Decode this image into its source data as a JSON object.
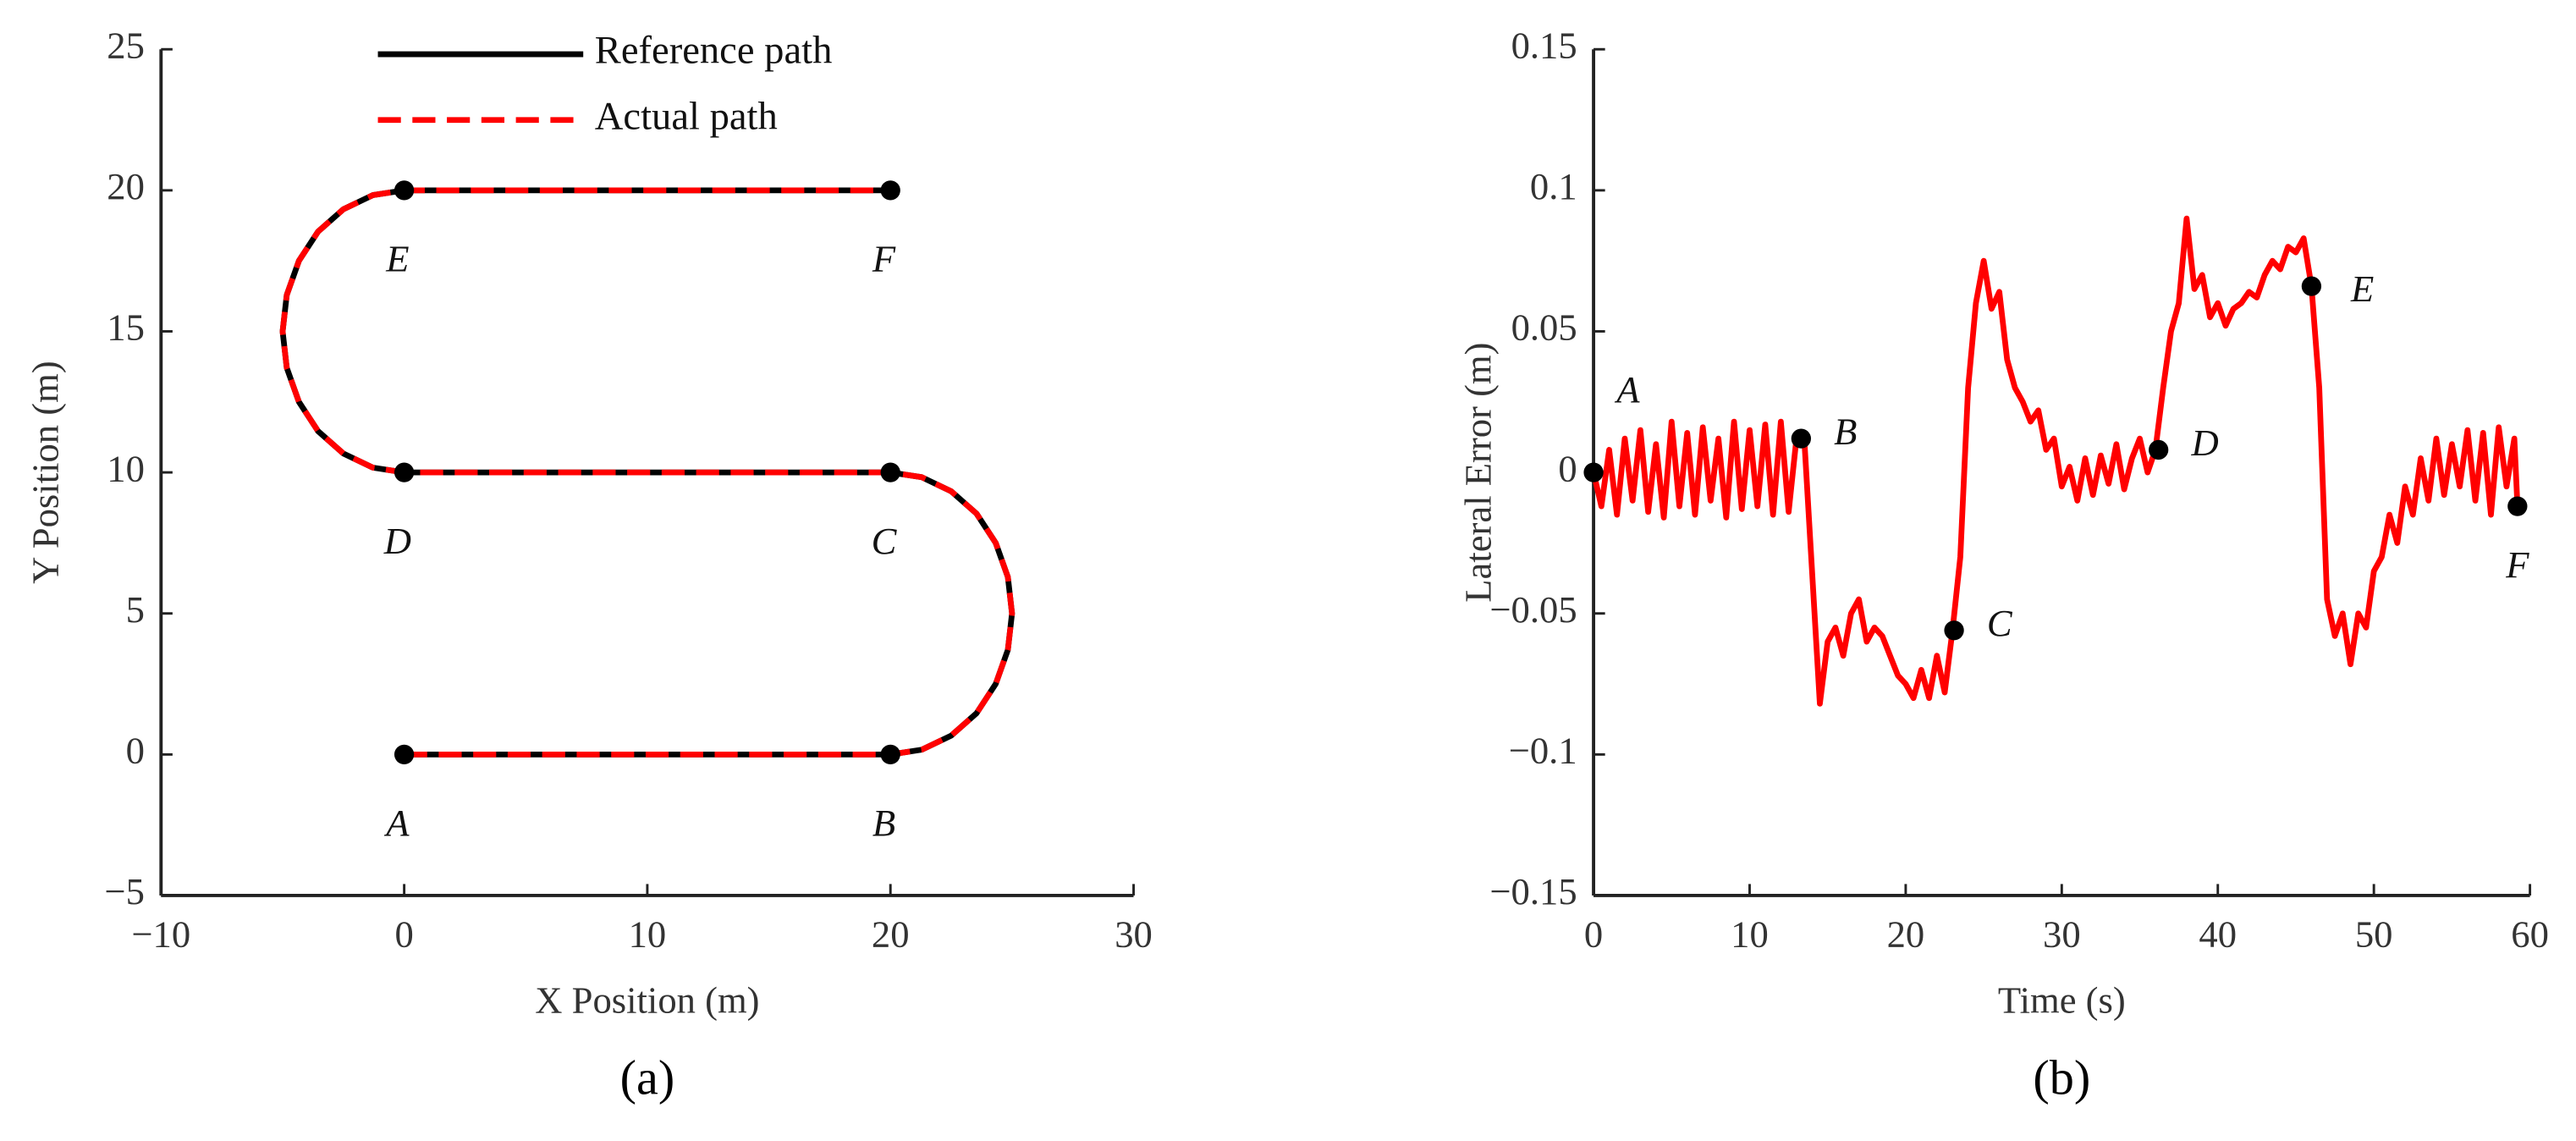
{
  "chart_data": [
    {
      "type": "line",
      "panel_label": "(a)",
      "xlabel": "X Position (m)",
      "ylabel": "Y Position (m)",
      "xlim": [
        -10,
        30
      ],
      "xticks": [
        {
          "value": -10,
          "label": "−10"
        },
        0,
        10,
        20,
        30
      ],
      "ylim": [
        -5,
        25
      ],
      "yticks": [
        {
          "value": -5,
          "label": "−5"
        },
        0,
        5,
        10,
        15,
        20,
        25
      ],
      "legend": "top",
      "series": [
        {
          "name": "Reference path",
          "color": "#000000",
          "linestyle": "solid",
          "x": [
            0,
            20,
            21.29,
            22.5,
            23.54,
            24.33,
            24.83,
            25,
            24.83,
            24.33,
            23.54,
            22.5,
            21.29,
            20,
            0,
            -1.29,
            -2.5,
            -3.54,
            -4.33,
            -4.83,
            -5,
            -4.83,
            -4.33,
            -3.54,
            -2.5,
            -1.29,
            0,
            20
          ],
          "values": [
            0,
            0,
            0.17,
            0.67,
            1.46,
            2.5,
            3.71,
            5,
            6.29,
            7.5,
            8.54,
            9.33,
            9.83,
            10,
            10,
            10.17,
            10.67,
            11.46,
            12.5,
            13.71,
            15,
            16.29,
            17.5,
            18.54,
            19.33,
            19.83,
            20,
            20
          ]
        },
        {
          "name": "Actual path",
          "color": "#ff0000",
          "linestyle": "dashed",
          "x": [
            0,
            20,
            21.29,
            22.5,
            23.54,
            24.33,
            24.83,
            25,
            24.83,
            24.33,
            23.54,
            22.5,
            21.29,
            20,
            0,
            -1.29,
            -2.5,
            -3.54,
            -4.33,
            -4.83,
            -5,
            -4.83,
            -4.33,
            -3.54,
            -2.5,
            -1.29,
            0,
            20
          ],
          "values": [
            0,
            0,
            0.17,
            0.67,
            1.46,
            2.5,
            3.71,
            5,
            6.29,
            7.5,
            8.54,
            9.33,
            9.83,
            10,
            10,
            10.17,
            10.67,
            11.46,
            12.5,
            13.71,
            15,
            16.29,
            17.5,
            18.54,
            19.33,
            19.83,
            20,
            20
          ]
        }
      ],
      "annotations": [
        {
          "text": "A",
          "x": 0,
          "y": 0
        },
        {
          "text": "B",
          "x": 20,
          "y": 0
        },
        {
          "text": "C",
          "x": 20,
          "y": 10
        },
        {
          "text": "D",
          "x": 0,
          "y": 10
        },
        {
          "text": "E",
          "x": 0,
          "y": 20
        },
        {
          "text": "F",
          "x": 20,
          "y": 20
        }
      ]
    },
    {
      "type": "line",
      "panel_label": "(b)",
      "xlabel": "Time (s)",
      "ylabel": "Lateral Error (m)",
      "xlim": [
        0,
        60
      ],
      "xticks": [
        0,
        10,
        20,
        30,
        40,
        50,
        60
      ],
      "ylim": [
        -0.15,
        0.15
      ],
      "yticks": [
        {
          "value": -0.15,
          "label": "−0.15"
        },
        {
          "value": -0.1,
          "label": "−0.1"
        },
        {
          "value": -0.05,
          "label": "−0.05"
        },
        0,
        0.05,
        0.1,
        0.15
      ],
      "series": [
        {
          "color": "#ff0000",
          "linestyle": "solid",
          "x": [
            0,
            0.5,
            1,
            1.5,
            2,
            2.5,
            3,
            3.5,
            4,
            4.5,
            5,
            5.5,
            6,
            6.5,
            7,
            7.5,
            8,
            8.5,
            9,
            9.5,
            10,
            10.5,
            11,
            11.5,
            12,
            12.5,
            13,
            13.5,
            14,
            14.5,
            15,
            15.5,
            16,
            16.5,
            17,
            17.5,
            18,
            18.5,
            19,
            19.5,
            20,
            20.5,
            21,
            21.5,
            22,
            22.5,
            23,
            23.5,
            24,
            24.5,
            25,
            25.5,
            26,
            26.5,
            27,
            27.5,
            28,
            28.5,
            29,
            29.5,
            30,
            30.5,
            31,
            31.5,
            32,
            32.5,
            33,
            33.5,
            34,
            34.5,
            35,
            35.5,
            36,
            36.5,
            37,
            37.5,
            38,
            38.5,
            39,
            39.5,
            40,
            40.5,
            41,
            41.5,
            42,
            42.5,
            43,
            43.5,
            44,
            44.5,
            45,
            45.5,
            46,
            46.5,
            47,
            47.5,
            48,
            48.5,
            49,
            49.5,
            50,
            50.5,
            51,
            51.5,
            52,
            52.5,
            53,
            53.5,
            54,
            54.5,
            55,
            55.5,
            56,
            56.5,
            57,
            57.5,
            58,
            58.5,
            59,
            59.2
          ],
          "values": [
            0,
            -0.012,
            0.008,
            -0.015,
            0.012,
            -0.01,
            0.015,
            -0.014,
            0.01,
            -0.016,
            0.018,
            -0.012,
            0.014,
            -0.015,
            0.016,
            -0.01,
            0.012,
            -0.016,
            0.018,
            -0.013,
            0.015,
            -0.012,
            0.017,
            -0.015,
            0.018,
            -0.014,
            0.012,
            0.012,
            -0.035,
            -0.082,
            -0.06,
            -0.055,
            -0.065,
            -0.05,
            -0.045,
            -0.06,
            -0.055,
            -0.058,
            -0.065,
            -0.072,
            -0.075,
            -0.08,
            -0.07,
            -0.08,
            -0.065,
            -0.078,
            -0.056,
            -0.03,
            0.03,
            0.06,
            0.075,
            0.058,
            0.064,
            0.04,
            0.03,
            0.025,
            0.018,
            0.022,
            0.008,
            0.012,
            -0.005,
            0.002,
            -0.01,
            0.005,
            -0.008,
            0.006,
            -0.004,
            0.01,
            -0.006,
            0.005,
            0.012,
            0,
            0.008,
            0.03,
            0.05,
            0.06,
            0.09,
            0.065,
            0.07,
            0.055,
            0.06,
            0.052,
            0.058,
            0.06,
            0.064,
            0.062,
            0.07,
            0.075,
            0.072,
            0.08,
            0.078,
            0.083,
            0.066,
            0.03,
            -0.045,
            -0.058,
            -0.05,
            -0.068,
            -0.05,
            -0.055,
            -0.035,
            -0.03,
            -0.015,
            -0.025,
            -0.005,
            -0.015,
            0.005,
            -0.01,
            0.012,
            -0.008,
            0.01,
            -0.005,
            0.015,
            -0.01,
            0.014,
            -0.015,
            0.016,
            -0.005,
            0.012,
            -0.012
          ]
        }
      ],
      "annotations": [
        {
          "text": "A",
          "x": 0,
          "y": 0
        },
        {
          "text": "B",
          "x": 13.3,
          "y": 0.012
        },
        {
          "text": "C",
          "x": 23.1,
          "y": -0.056
        },
        {
          "text": "D",
          "x": 36.2,
          "y": 0.008
        },
        {
          "text": "E",
          "x": 46,
          "y": 0.066
        },
        {
          "text": "F",
          "x": 59.2,
          "y": -0.012
        }
      ]
    }
  ]
}
